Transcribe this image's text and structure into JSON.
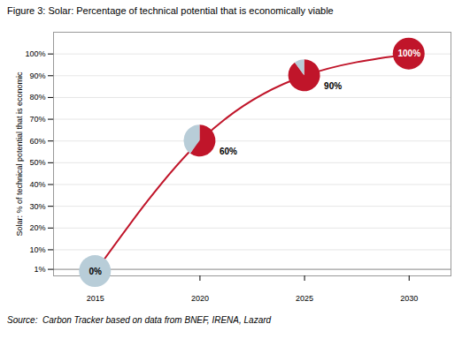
{
  "chart_data": {
    "type": "line",
    "title": "Figure 3: Solar: Percentage of technical potential that is economically viable",
    "x": [
      2015,
      2020,
      2025,
      2030
    ],
    "values": [
      0,
      60,
      90,
      100
    ],
    "value_labels": [
      "0%",
      "60%",
      "90%",
      "100%"
    ],
    "data_labels": true,
    "color": "#c0152a",
    "pie_sizes": [
      [
        0,
        100
      ],
      [
        60,
        40
      ],
      [
        90,
        10
      ],
      [
        100,
        0
      ]
    ],
    "pie_colors": [
      "#c0152a",
      "#b8cdd8"
    ],
    "xlim": [
      2013,
      2032
    ],
    "xticks": [
      2015,
      2020,
      2025,
      2030
    ],
    "ylim": [
      -2,
      110
    ],
    "yticks": [
      {
        "value": 1,
        "label": "1%"
      },
      {
        "value": 10,
        "label": "10%"
      },
      {
        "value": 20,
        "label": "20%"
      },
      {
        "value": 30,
        "label": "30%"
      },
      {
        "value": 40,
        "label": "40%"
      },
      {
        "value": 50,
        "label": "50%"
      },
      {
        "value": 60,
        "label": "60%"
      },
      {
        "value": 70,
        "label": "70%"
      },
      {
        "value": 80,
        "label": "80%"
      },
      {
        "value": 90,
        "label": "90%"
      },
      {
        "value": 100,
        "label": "100%"
      }
    ],
    "ylabel": "Solar: % of technical potential that is economic",
    "grid": true,
    "baseline": 1,
    "source": "Source:  Carbon Tracker based on data from BNEF, IRENA, Lazard"
  }
}
